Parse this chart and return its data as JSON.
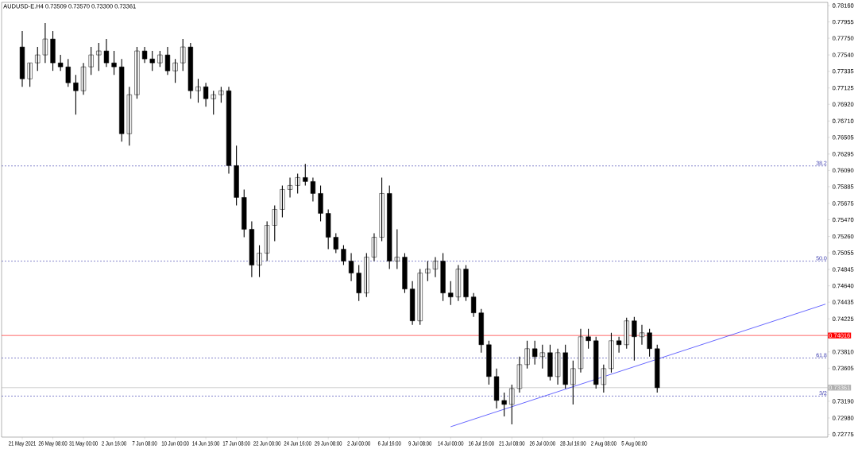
{
  "chart_data": {
    "type": "candlestick",
    "title": "AUDUSD-E.H4  0.73509 0.73570 0.73300 0.73361",
    "categories": [
      "21 May 2021",
      null,
      null,
      null,
      "26 May 08:00",
      null,
      null,
      null,
      "31 May 00:00",
      null,
      null,
      null,
      "2 Jun 16:00",
      null,
      null,
      null,
      "7 Jun 08:00",
      null,
      null,
      null,
      "10 Jun 00:00",
      null,
      null,
      null,
      "14 Jun 16:00",
      null,
      null,
      null,
      "17 Jun 08:00",
      null,
      null,
      null,
      "22 Jun 00:00",
      null,
      null,
      null,
      "24 Jun 16:00",
      null,
      null,
      null,
      "29 Jun 08:00",
      null,
      null,
      null,
      "2 Jul 00:00",
      null,
      null,
      null,
      "6 Jul 16:00",
      null,
      null,
      null,
      "9 Jul 08:00",
      null,
      null,
      null,
      "14 Jul 00:00",
      null,
      null,
      null,
      "16 Jul 16:00",
      null,
      null,
      null,
      "21 Jul 08:00",
      null,
      null,
      null,
      "26 Jul 00:00",
      null,
      null,
      null,
      "28 Jul 16:00",
      null,
      null,
      null,
      "2 Aug 08:00",
      null,
      null,
      null,
      "5 Aug 00:00",
      null,
      null,
      null,
      null,
      null,
      null,
      null,
      null,
      null,
      null,
      null,
      null,
      null,
      null,
      null,
      null,
      null,
      null,
      null,
      null,
      null,
      null,
      null,
      null,
      null
    ],
    "ohlc": [
      [
        0.7764,
        0.7784,
        0.7714,
        0.7724
      ],
      [
        0.7724,
        0.7744,
        0.7714,
        0.7744
      ],
      [
        0.7744,
        0.7764,
        0.7734,
        0.7754
      ],
      [
        0.7754,
        0.7794,
        0.7744,
        0.7774
      ],
      [
        0.7774,
        0.7784,
        0.7734,
        0.7744
      ],
      [
        0.7744,
        0.7754,
        0.7734,
        0.7739
      ],
      [
        0.7739,
        0.7749,
        0.7714,
        0.7719
      ],
      [
        0.7719,
        0.7729,
        0.7679,
        0.7709
      ],
      [
        0.7709,
        0.7744,
        0.7704,
        0.7739
      ],
      [
        0.7739,
        0.7764,
        0.7729,
        0.7754
      ],
      [
        0.7754,
        0.7769,
        0.7734,
        0.7759
      ],
      [
        0.7759,
        0.7774,
        0.7739,
        0.7744
      ],
      [
        0.7744,
        0.7759,
        0.7729,
        0.7739
      ],
      [
        0.7739,
        0.7749,
        0.7645,
        0.7655
      ],
      [
        0.7655,
        0.7714,
        0.764,
        0.7704
      ],
      [
        0.7704,
        0.7764,
        0.7699,
        0.7759
      ],
      [
        0.7759,
        0.7764,
        0.7744,
        0.7749
      ],
      [
        0.7749,
        0.7759,
        0.7734,
        0.7744
      ],
      [
        0.7744,
        0.7759,
        0.7739,
        0.7754
      ],
      [
        0.7754,
        0.7764,
        0.7729,
        0.7734
      ],
      [
        0.7734,
        0.7749,
        0.7719,
        0.7744
      ],
      [
        0.7744,
        0.7774,
        0.7734,
        0.7764
      ],
      [
        0.7764,
        0.7769,
        0.7699,
        0.7709
      ],
      [
        0.7709,
        0.7724,
        0.7694,
        0.7714
      ],
      [
        0.7714,
        0.7719,
        0.7689,
        0.7699
      ],
      [
        0.7699,
        0.7709,
        0.7679,
        0.7704
      ],
      [
        0.7704,
        0.7714,
        0.7694,
        0.7709
      ],
      [
        0.7709,
        0.7714,
        0.7605,
        0.7615
      ],
      [
        0.7615,
        0.764,
        0.7565,
        0.7575
      ],
      [
        0.7575,
        0.7585,
        0.7525,
        0.7535
      ],
      [
        0.7535,
        0.7545,
        0.7475,
        0.749
      ],
      [
        0.749,
        0.7515,
        0.7475,
        0.7505
      ],
      [
        0.7505,
        0.7545,
        0.7495,
        0.754
      ],
      [
        0.754,
        0.7565,
        0.752,
        0.756
      ],
      [
        0.756,
        0.759,
        0.755,
        0.7585
      ],
      [
        0.7585,
        0.76,
        0.7575,
        0.759
      ],
      [
        0.759,
        0.7605,
        0.758,
        0.76
      ],
      [
        0.76,
        0.7617,
        0.759,
        0.7595
      ],
      [
        0.7595,
        0.76,
        0.757,
        0.758
      ],
      [
        0.758,
        0.759,
        0.7545,
        0.7555
      ],
      [
        0.7555,
        0.756,
        0.751,
        0.7525
      ],
      [
        0.7525,
        0.753,
        0.7505,
        0.751
      ],
      [
        0.751,
        0.7515,
        0.749,
        0.7495
      ],
      [
        0.7495,
        0.7505,
        0.747,
        0.748
      ],
      [
        0.748,
        0.749,
        0.7445,
        0.7455
      ],
      [
        0.7455,
        0.7505,
        0.745,
        0.75
      ],
      [
        0.75,
        0.753,
        0.7495,
        0.7525
      ],
      [
        0.7525,
        0.76,
        0.752,
        0.758
      ],
      [
        0.758,
        0.759,
        0.7485,
        0.7495
      ],
      [
        0.7495,
        0.7535,
        0.7485,
        0.75
      ],
      [
        0.75,
        0.7505,
        0.7455,
        0.746
      ],
      [
        0.746,
        0.747,
        0.7415,
        0.742
      ],
      [
        0.742,
        0.7485,
        0.7415,
        0.748
      ],
      [
        0.748,
        0.7495,
        0.747,
        0.7485
      ],
      [
        0.7485,
        0.75,
        0.7475,
        0.7495
      ],
      [
        0.7495,
        0.7505,
        0.7445,
        0.7455
      ],
      [
        0.7455,
        0.747,
        0.744,
        0.745
      ],
      [
        0.745,
        0.749,
        0.7445,
        0.7485
      ],
      [
        0.7485,
        0.749,
        0.7445,
        0.745
      ],
      [
        0.745,
        0.7455,
        0.7425,
        0.743
      ],
      [
        0.743,
        0.7435,
        0.738,
        0.739
      ],
      [
        0.739,
        0.7395,
        0.734,
        0.735
      ],
      [
        0.735,
        0.736,
        0.731,
        0.732
      ],
      [
        0.732,
        0.733,
        0.73,
        0.7315
      ],
      [
        0.7315,
        0.734,
        0.729,
        0.7335
      ],
      [
        0.7335,
        0.7375,
        0.733,
        0.7365
      ],
      [
        0.7365,
        0.7395,
        0.736,
        0.7385
      ],
      [
        0.7385,
        0.7395,
        0.7365,
        0.7375
      ],
      [
        0.7375,
        0.739,
        0.736,
        0.738
      ],
      [
        0.738,
        0.739,
        0.7345,
        0.735
      ],
      [
        0.735,
        0.7385,
        0.734,
        0.738
      ],
      [
        0.738,
        0.739,
        0.7335,
        0.734
      ],
      [
        0.734,
        0.737,
        0.7315,
        0.736
      ],
      [
        0.736,
        0.741,
        0.7355,
        0.74
      ],
      [
        0.74,
        0.741,
        0.7385,
        0.7395
      ],
      [
        0.7395,
        0.74,
        0.7335,
        0.734
      ],
      [
        0.734,
        0.7365,
        0.733,
        0.736
      ],
      [
        0.736,
        0.7405,
        0.7355,
        0.7395
      ],
      [
        0.7395,
        0.74,
        0.738,
        0.739
      ],
      [
        0.739,
        0.7424,
        0.7385,
        0.742
      ],
      [
        0.742,
        0.7425,
        0.737,
        0.74
      ],
      [
        0.74,
        0.7415,
        0.739,
        0.7405
      ],
      [
        0.7405,
        0.741,
        0.7375,
        0.7385
      ],
      [
        0.7385,
        0.739,
        0.733,
        0.7336
      ],
      null,
      null,
      null,
      null,
      null,
      null,
      null,
      null,
      null,
      null,
      null,
      null,
      null,
      null,
      null,
      null,
      null,
      null,
      null,
      null,
      null,
      null
    ],
    "series": [
      {
        "type": "line",
        "color": "#0000ff",
        "values": [
          null,
          null,
          null,
          null,
          null,
          null,
          null,
          null,
          null,
          null,
          null,
          null,
          null,
          null,
          null,
          null,
          null,
          null,
          null,
          null,
          null,
          null,
          null,
          null,
          null,
          null,
          null,
          null,
          null,
          null,
          null,
          null,
          null,
          null,
          null,
          null,
          null,
          null,
          null,
          null,
          null,
          null,
          null,
          null,
          null,
          null,
          null,
          null,
          null,
          null,
          null,
          null,
          null,
          null,
          null,
          null,
          0.7287,
          null,
          null,
          null,
          null,
          null,
          null,
          null,
          null,
          null,
          null,
          null,
          null,
          null,
          null,
          null,
          null,
          null,
          null,
          null,
          null,
          null,
          null,
          null,
          null,
          null,
          null,
          null,
          null,
          null,
          null,
          null,
          null,
          null,
          null,
          null,
          null,
          null,
          null,
          null,
          null,
          null,
          null,
          null,
          null,
          null,
          null,
          null,
          null,
          0.7441
        ]
      }
    ],
    "annotations": [
      {
        "text": "38.2",
        "y": 0.76146
      },
      {
        "text": "50.0",
        "y": 0.7495
      },
      {
        "text": "61.8",
        "y": 0.73733
      },
      {
        "text": "3/2",
        "y": 0.73255
      }
    ],
    "ylim": [
      0.7274,
      0.782
    ],
    "yticks": [
      {
        "value": 0.7816,
        "label": "0.78160"
      },
      {
        "value": 0.77955,
        "label": "0.77955"
      },
      {
        "value": 0.7775,
        "label": "0.77750"
      },
      {
        "value": 0.7754,
        "label": "0.77540"
      },
      {
        "value": 0.77335,
        "label": "0.77335"
      },
      {
        "value": 0.77125,
        "label": "0.77125"
      },
      {
        "value": 0.7692,
        "label": "0.76920"
      },
      {
        "value": 0.7671,
        "label": "0.76710"
      },
      {
        "value": 0.76505,
        "label": "0.76505"
      },
      {
        "value": 0.76295,
        "label": "0.76295"
      },
      {
        "value": 0.7609,
        "label": "0.76090"
      },
      {
        "value": 0.75885,
        "label": "0.75885"
      },
      {
        "value": 0.75675,
        "label": "0.75675"
      },
      {
        "value": 0.7547,
        "label": "0.75470"
      },
      {
        "value": 0.7526,
        "label": "0.75260"
      },
      {
        "value": 0.75055,
        "label": "0.75055"
      },
      {
        "value": 0.74845,
        "label": "0.74845"
      },
      {
        "value": 0.7464,
        "label": "0.74640"
      },
      {
        "value": 0.74435,
        "label": "0.74435"
      },
      {
        "value": 0.74225,
        "label": "0.74225"
      },
      {
        "value": 0.7381,
        "label": "0.73810"
      },
      {
        "value": 0.73605,
        "label": "0.73605"
      },
      {
        "value": 0.7319,
        "label": "0.73190"
      },
      {
        "value": 0.7298,
        "label": "0.72980"
      },
      {
        "value": 0.72775,
        "label": "0.72775"
      }
    ],
    "ref_lines": [
      {
        "axis": "y",
        "value": 0.76146,
        "color": "#3333aa",
        "line_style": "dashed"
      },
      {
        "axis": "y",
        "value": 0.7495,
        "color": "#3333aa",
        "line_style": "dashed"
      },
      {
        "axis": "y",
        "value": 0.73733,
        "color": "#3333aa",
        "line_style": "dashed"
      },
      {
        "axis": "y",
        "value": 0.73255,
        "color": "#3333aa",
        "line_style": "dashed"
      },
      {
        "axis": "y",
        "value": 0.74016,
        "label": "0.74016",
        "color": "#ff0000",
        "line_style": "solid"
      },
      {
        "axis": "y",
        "value": 0.73361,
        "label": "0.73361",
        "color": "#b0b0b0",
        "line_style": "solid"
      }
    ]
  }
}
